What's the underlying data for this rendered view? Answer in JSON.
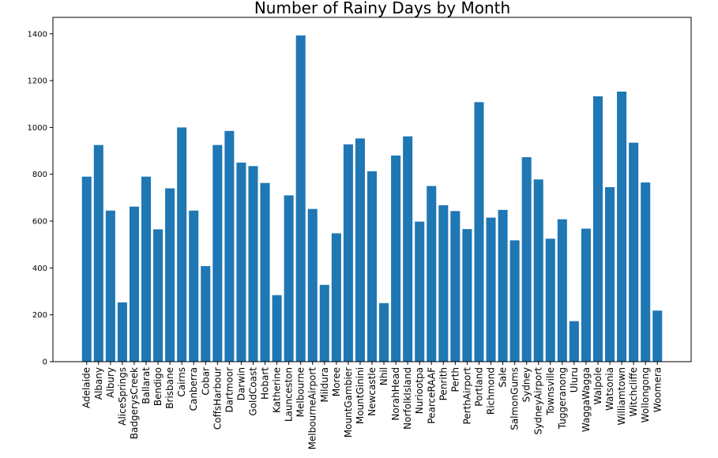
{
  "chart_data": {
    "type": "bar",
    "title": "Number of Rainy Days by Month",
    "xlabel": "",
    "ylabel": "",
    "ylim": [
      0,
      1470
    ],
    "yticks": [
      0,
      200,
      400,
      600,
      800,
      1000,
      1200,
      1400
    ],
    "color": "#1f77b4",
    "categories": [
      "Adelaide",
      "Albany",
      "Albury",
      "AliceSprings",
      "BadgerysCreek",
      "Ballarat",
      "Bendigo",
      "Brisbane",
      "Cairns",
      "Canberra",
      "Cobar",
      "CoffsHarbour",
      "Dartmoor",
      "Darwin",
      "GoldCoast",
      "Hobart",
      "Katherine",
      "Launceston",
      "Melbourne",
      "MelbourneAirport",
      "Mildura",
      "Moree",
      "MountGambier",
      "MountGinini",
      "Newcastle",
      "Nhil",
      "NorahHead",
      "NorfolkIsland",
      "Nuriootpa",
      "PearceRAAF",
      "Penrith",
      "Perth",
      "PerthAirport",
      "Portland",
      "Richmond",
      "Sale",
      "SalmonGums",
      "Sydney",
      "SydneyAirport",
      "Townsville",
      "Tuggeranong",
      "Uluru",
      "WaggaWagga",
      "Walpole",
      "Watsonia",
      "Williamtown",
      "Witchcliffe",
      "Wollongong",
      "Woomera"
    ],
    "values": [
      790,
      925,
      645,
      253,
      662,
      790,
      565,
      740,
      1000,
      645,
      408,
      925,
      985,
      850,
      835,
      763,
      284,
      710,
      1393,
      652,
      328,
      548,
      928,
      953,
      813,
      250,
      880,
      962,
      598,
      750,
      668,
      643,
      566,
      1108,
      615,
      648,
      518,
      873,
      778,
      525,
      608,
      173,
      568,
      1133,
      745,
      1153,
      935,
      765,
      218
    ]
  }
}
